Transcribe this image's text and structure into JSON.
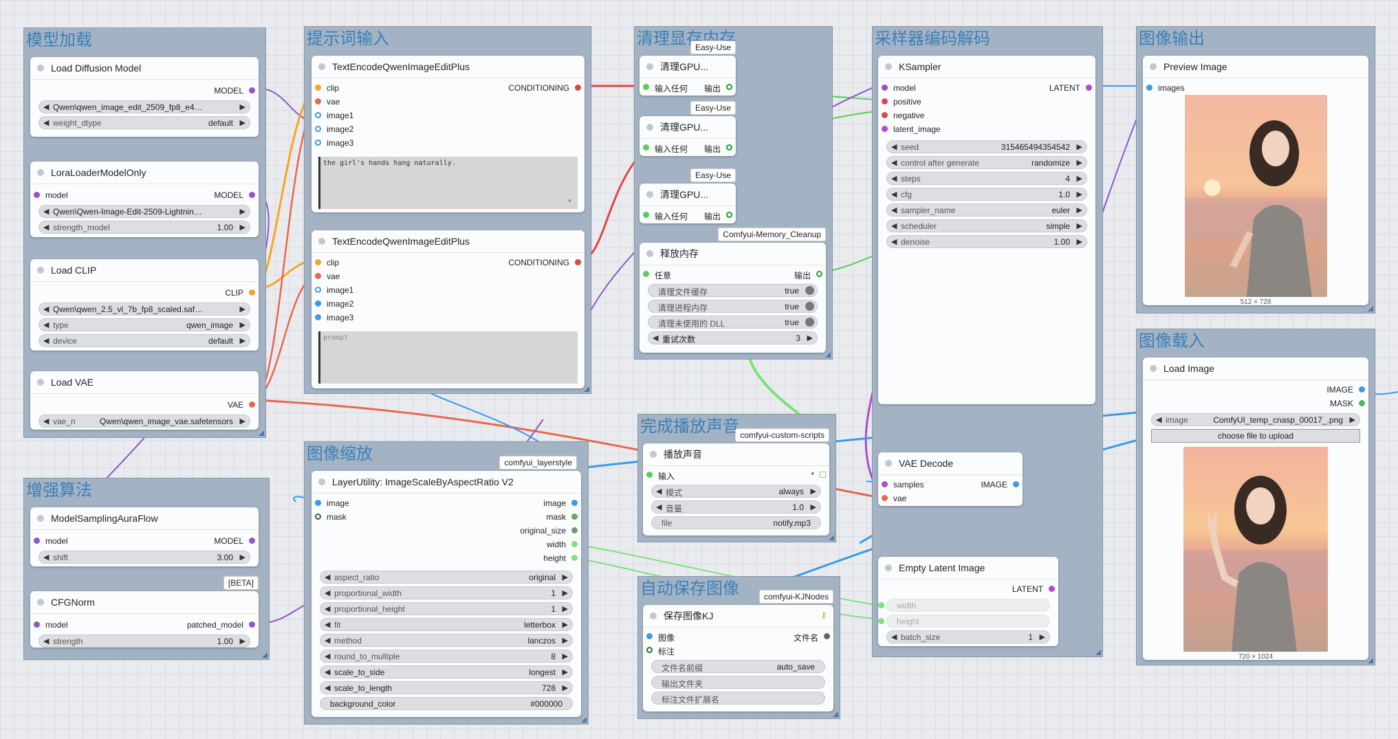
{
  "groups": {
    "model_loading": "模型加载",
    "enhance": "增强算法",
    "prompt_input": "提示词输入",
    "image_scale": "图像缩放",
    "memory_clean": "清理显存内存",
    "sound": "完成播放声音",
    "autosave": "自动保存图像",
    "sampler": "采样器编码解码",
    "image_output": "图像输出",
    "image_input": "图像载入"
  },
  "badges": {
    "easy_use": "Easy-Use",
    "memory_cleanup": "Comfyui-Memory_Cleanup",
    "layerstyle": "comfyui_layerstyle",
    "custom_scripts": "comfyui-custom-scripts",
    "kjnodes": "comfyui-KJNodes",
    "beta": "[BETA]"
  },
  "nodes": {
    "load_diffusion": {
      "title": "Load Diffusion Model",
      "out": "MODEL",
      "unet_name": "Qwen\\qwen_image_edit_2509_fp8_e4m3fn. ...",
      "weight_dtype_label": "weight_dtype",
      "weight_dtype": "default"
    },
    "lora": {
      "title": "LoraLoaderModelOnly",
      "in": "model",
      "out": "MODEL",
      "lora_name": "Qwen\\Qwen-Image-Edit-2509-Lightning-4ste...",
      "strength_label": "strength_model",
      "strength": "1.00"
    },
    "load_clip": {
      "title": "Load CLIP",
      "out": "CLIP",
      "clip_name": "Qwen\\qwen_2.5_vl_7b_fp8_scaled.safetens...",
      "type_label": "type",
      "type": "qwen_image",
      "device_label": "device",
      "device": "default"
    },
    "load_vae": {
      "title": "Load VAE",
      "out": "VAE",
      "vae_label": "vae_n",
      "vae_name": "Qwen\\qwen_image_vae.safetensors"
    },
    "model_sampling": {
      "title": "ModelSamplingAuraFlow",
      "in": "model",
      "out": "MODEL",
      "shift_label": "shift",
      "shift": "3.00"
    },
    "cfgnorm": {
      "title": "CFGNorm",
      "in": "model",
      "out": "patched_model",
      "strength_label": "strength",
      "strength": "1.00"
    },
    "text_encode_1": {
      "title": "TextEncodeQwenImageEditPlus",
      "inputs": [
        "clip",
        "vae",
        "image1",
        "image2",
        "image3"
      ],
      "out": "CONDITIONING",
      "prompt": "the girl's hands hang naturally."
    },
    "text_encode_2": {
      "title": "TextEncodeQwenImageEditPlus",
      "inputs": [
        "clip",
        "vae",
        "image1",
        "image2",
        "image3"
      ],
      "out": "CONDITIONING",
      "placeholder": "prompt"
    },
    "scale": {
      "title": "LayerUtility: ImageScaleByAspectRatio V2",
      "inputs": [
        "image",
        "mask"
      ],
      "outputs": [
        "image",
        "mask",
        "original_size",
        "width",
        "height"
      ],
      "widgets": [
        {
          "name": "aspect_ratio",
          "value": "original"
        },
        {
          "name": "proportional_width",
          "value": "1"
        },
        {
          "name": "proportional_height",
          "value": "1"
        },
        {
          "name": "fit",
          "value": "letterbox"
        },
        {
          "name": "method",
          "value": "lanczos"
        },
        {
          "name": "round_to_multiple",
          "value": "8"
        },
        {
          "name": "scale_to_side",
          "value": "longest"
        },
        {
          "name": "scale_to_length",
          "value": "728"
        },
        {
          "name": "background_color",
          "value": "#000000"
        }
      ]
    },
    "gpu1": {
      "title": "清理GPU...",
      "in": "输入任何",
      "out": "输出"
    },
    "gpu2": {
      "title": "清理GPU...",
      "in": "输入任何",
      "out": "输出"
    },
    "gpu3": {
      "title": "清理GPU...",
      "in": "输入任何",
      "out": "输出"
    },
    "free_mem": {
      "title": "释放内存",
      "in": "任意",
      "out": "输出",
      "widgets": [
        {
          "name": "清理文件缓存",
          "value": "true"
        },
        {
          "name": "清理进程内存",
          "value": "true"
        },
        {
          "name": "清理未使用的 DLL",
          "value": "true"
        }
      ],
      "retry_label": "重试次数",
      "retry": "3"
    },
    "play_sound": {
      "title": "播放声音",
      "in": "输入",
      "out": "*",
      "mode_label": "模式",
      "mode": "always",
      "volume_label": "音量",
      "volume": "1.0",
      "file_label": "file",
      "file": "notify.mp3"
    },
    "save_kj": {
      "title": "保存图像KJ",
      "inputs": [
        "图像",
        "标注"
      ],
      "out": "文件名",
      "prefix_label": "文件名前缀",
      "prefix": "auto_save",
      "folder_label": "输出文件夹",
      "ext_label": "标注文件扩展名"
    },
    "ksampler": {
      "title": "KSampler",
      "inputs": [
        "model",
        "positive",
        "negative",
        "latent_image"
      ],
      "out": "LATENT",
      "widgets": [
        {
          "name": "seed",
          "value": "315465494354542"
        },
        {
          "name": "control after generate",
          "value": "randomize"
        },
        {
          "name": "steps",
          "value": "4"
        },
        {
          "name": "cfg",
          "value": "1.0"
        },
        {
          "name": "sampler_name",
          "value": "euler"
        },
        {
          "name": "scheduler",
          "value": "simple"
        },
        {
          "name": "denoise",
          "value": "1.00"
        }
      ]
    },
    "vae_decode": {
      "title": "VAE Decode",
      "inputs": [
        "samples",
        "vae"
      ],
      "out": "IMAGE"
    },
    "empty_latent": {
      "title": "Empty Latent Image",
      "out": "LATENT",
      "width_label": "width",
      "height_label": "height",
      "batch_label": "batch_size",
      "batch": "1"
    },
    "preview": {
      "title": "Preview Image",
      "in": "images",
      "dims": "512 × 728"
    },
    "load_image": {
      "title": "Load Image",
      "outputs": [
        "IMAGE",
        "MASK"
      ],
      "image_label": "image",
      "image": "ComfyUI_temp_cnasp_00017_.png",
      "upload": "choose file to upload",
      "dims": "720 × 1024"
    }
  },
  "colors": {
    "model": "#8e56c7",
    "clip": "#f5a524",
    "vae": "#e9664d",
    "conditioning": "#e04545",
    "image": "#3b9ae8",
    "mask": "#53b35a",
    "latent": "#b04ad0",
    "int": "#7fe07f",
    "any": "#5ccc5c",
    "group_title": "#3d7fb8"
  }
}
